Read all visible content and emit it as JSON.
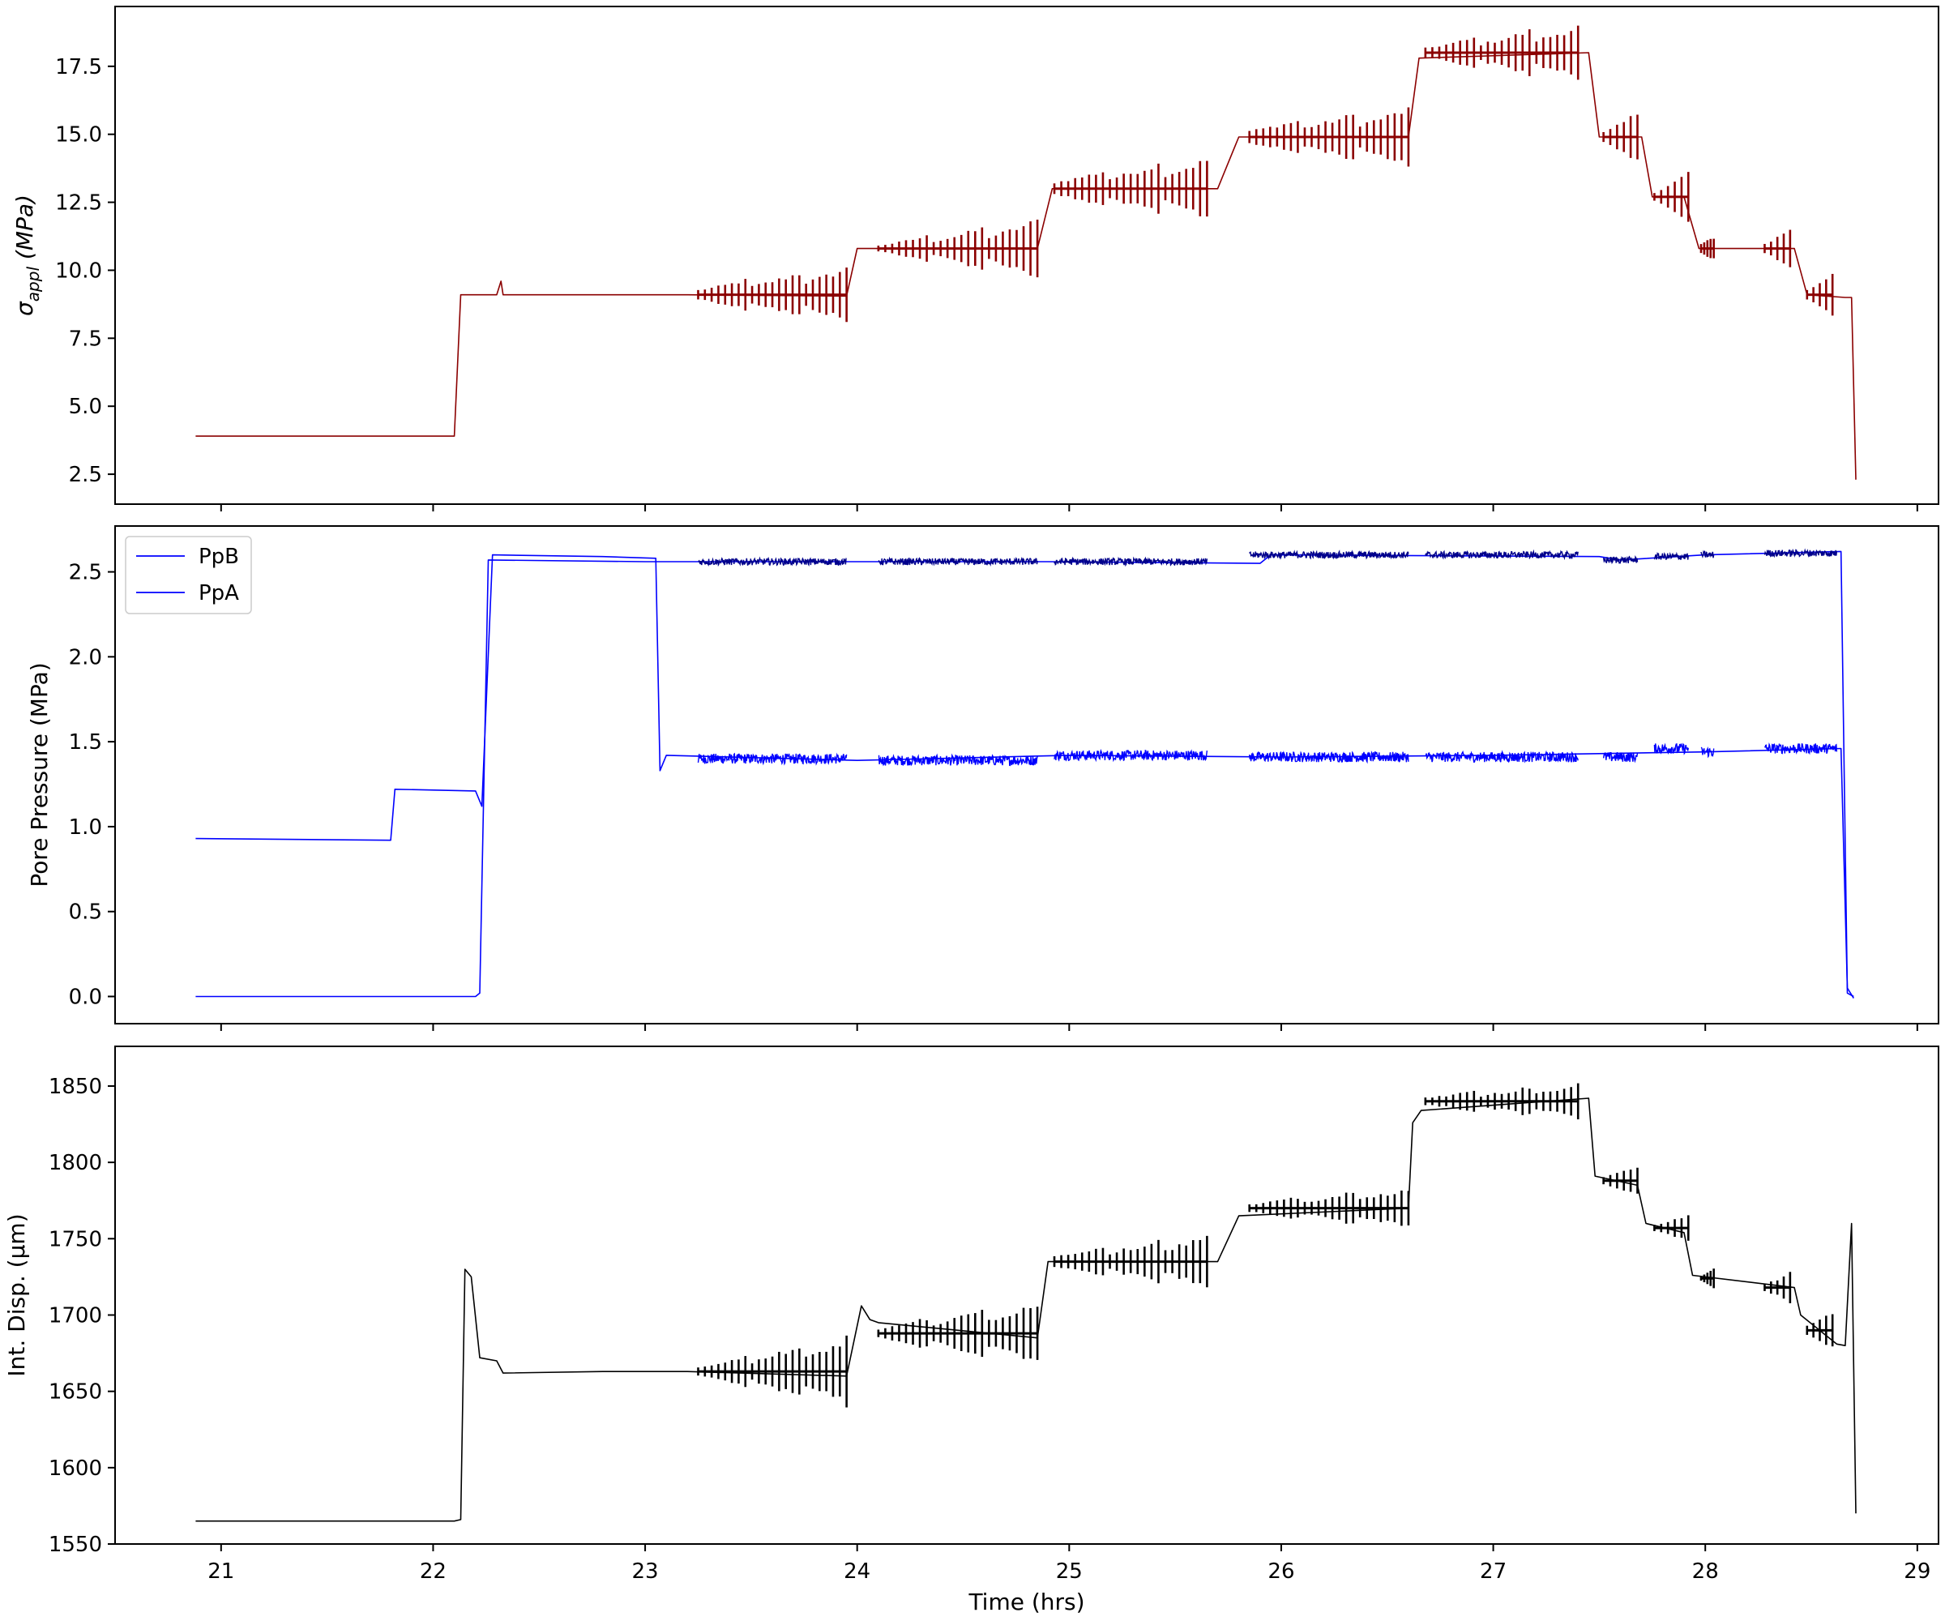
{
  "figure": {
    "xlabel": "Time (hrs)"
  },
  "chart_data": [
    {
      "type": "line",
      "ylabel": "σappl (MPa)",
      "ylabel_main": "σ",
      "ylabel_sub": "appl",
      "ylabel_unit": " (MPa)",
      "xlim": [
        20.5,
        29.1
      ],
      "ylim": [
        1.4,
        19.7
      ],
      "xticks": [
        21,
        22,
        23,
        24,
        25,
        26,
        27,
        28,
        29
      ],
      "yticks": [
        2.5,
        5.0,
        7.5,
        10.0,
        12.5,
        15.0,
        17.5
      ],
      "ytick_labels": [
        "2.5",
        "5.0",
        "7.5",
        "10.0",
        "12.5",
        "15.0",
        "17.5"
      ],
      "color": "#8b0000",
      "series": [
        {
          "x": [
            20.88,
            22.05,
            22.1,
            22.13,
            22.3,
            22.32,
            22.33,
            23.2,
            23.95,
            24.0,
            24.85,
            24.92,
            25.7,
            25.8,
            26.6,
            26.65,
            27.45,
            27.5,
            27.7,
            27.75,
            27.9,
            27.97,
            28.3,
            28.42,
            28.48,
            28.66,
            28.69,
            28.71
          ],
          "y": [
            3.9,
            3.9,
            3.9,
            9.1,
            9.1,
            9.6,
            9.1,
            9.1,
            9.05,
            10.8,
            10.8,
            13.0,
            13.0,
            14.9,
            14.9,
            17.8,
            18.0,
            14.9,
            14.9,
            12.7,
            12.7,
            10.8,
            10.8,
            10.8,
            9.1,
            9.0,
            9.0,
            2.3
          ]
        }
      ],
      "oscillation_bursts": [
        {
          "x_start": 23.25,
          "x_end": 23.95,
          "center": 9.1,
          "amp_start": 0.3,
          "amp_end": 1.0
        },
        {
          "x_start": 24.1,
          "x_end": 24.85,
          "center": 10.8,
          "amp_start": 0.2,
          "amp_end": 1.0
        },
        {
          "x_start": 24.93,
          "x_end": 25.65,
          "center": 13.0,
          "amp_start": 0.4,
          "amp_end": 1.1
        },
        {
          "x_start": 25.85,
          "x_end": 26.6,
          "center": 14.9,
          "amp_start": 0.4,
          "amp_end": 1.0
        },
        {
          "x_start": 26.68,
          "x_end": 27.4,
          "center": 18.0,
          "amp_start": 0.3,
          "amp_end": 1.0
        },
        {
          "x_start": 27.52,
          "x_end": 27.68,
          "center": 14.9,
          "amp_start": 0.3,
          "amp_end": 1.0
        },
        {
          "x_start": 27.76,
          "x_end": 27.92,
          "center": 12.7,
          "amp_start": 0.3,
          "amp_end": 1.0
        },
        {
          "x_start": 27.98,
          "x_end": 28.04,
          "center": 10.8,
          "amp_start": 0.3,
          "amp_end": 0.5
        },
        {
          "x_start": 28.28,
          "x_end": 28.4,
          "center": 10.8,
          "amp_start": 0.3,
          "amp_end": 0.9
        },
        {
          "x_start": 28.48,
          "x_end": 28.6,
          "center": 9.1,
          "amp_start": 0.3,
          "amp_end": 1.0
        }
      ]
    },
    {
      "type": "line",
      "ylabel": "Pore Pressure (MPa)",
      "xlim": [
        20.5,
        29.1
      ],
      "ylim": [
        -0.16,
        2.77
      ],
      "xticks": [
        21,
        22,
        23,
        24,
        25,
        26,
        27,
        28,
        29
      ],
      "yticks": [
        0.0,
        0.5,
        1.0,
        1.5,
        2.0,
        2.5
      ],
      "ytick_labels": [
        "0.0",
        "0.5",
        "1.0",
        "1.5",
        "2.0",
        "2.5"
      ],
      "legend": {
        "position": "upper left",
        "entries": [
          "PpB",
          "PpA"
        ]
      },
      "series": [
        {
          "name": "PpB",
          "color": "#0000ff",
          "x": [
            20.88,
            22.2,
            22.22,
            22.26,
            23.0,
            23.3,
            24.0,
            24.9,
            25.9,
            25.95,
            27.5,
            27.6,
            28.0,
            28.64,
            28.67,
            28.7
          ],
          "y": [
            0.0,
            0.0,
            0.02,
            2.57,
            2.56,
            2.56,
            2.56,
            2.56,
            2.55,
            2.6,
            2.59,
            2.57,
            2.6,
            2.62,
            0.02,
            0.0
          ]
        },
        {
          "name": "PpA",
          "color": "#0000ff",
          "x": [
            20.88,
            21.8,
            21.82,
            22.2,
            22.23,
            22.28,
            22.8,
            23.05,
            23.07,
            23.1,
            24.0,
            25.0,
            26.0,
            27.0,
            28.0,
            28.64,
            28.67,
            28.7
          ],
          "y": [
            0.93,
            0.92,
            1.22,
            1.21,
            1.12,
            2.6,
            2.59,
            2.58,
            1.33,
            1.42,
            1.39,
            1.42,
            1.41,
            1.42,
            1.44,
            1.46,
            0.05,
            -0.01
          ]
        }
      ],
      "noise_bands": [
        {
          "series": "PpA",
          "x_start": 23.25,
          "x_end": 23.95,
          "center": 1.4,
          "amp": 0.03
        },
        {
          "series": "PpA",
          "x_start": 24.1,
          "x_end": 24.85,
          "center": 1.39,
          "amp": 0.03
        },
        {
          "series": "PpA",
          "x_start": 24.93,
          "x_end": 25.65,
          "center": 1.42,
          "amp": 0.03
        },
        {
          "series": "PpA",
          "x_start": 25.85,
          "x_end": 26.6,
          "center": 1.41,
          "amp": 0.03
        },
        {
          "series": "PpA",
          "x_start": 26.68,
          "x_end": 27.4,
          "center": 1.41,
          "amp": 0.03
        },
        {
          "series": "PpA",
          "x_start": 27.52,
          "x_end": 27.68,
          "center": 1.41,
          "amp": 0.03
        },
        {
          "series": "PpA",
          "x_start": 27.76,
          "x_end": 27.92,
          "center": 1.46,
          "amp": 0.03
        },
        {
          "series": "PpA",
          "x_start": 27.98,
          "x_end": 28.04,
          "center": 1.44,
          "amp": 0.03
        },
        {
          "series": "PpA",
          "x_start": 28.28,
          "x_end": 28.62,
          "center": 1.46,
          "amp": 0.03
        },
        {
          "series": "PpB",
          "x_start": 23.25,
          "x_end": 23.95,
          "center": 2.56,
          "amp": 0.02
        },
        {
          "series": "PpB",
          "x_start": 24.1,
          "x_end": 24.85,
          "center": 2.56,
          "amp": 0.02
        },
        {
          "series": "PpB",
          "x_start": 24.93,
          "x_end": 25.65,
          "center": 2.56,
          "amp": 0.02
        },
        {
          "series": "PpB",
          "x_start": 25.85,
          "x_end": 26.6,
          "center": 2.6,
          "amp": 0.02
        },
        {
          "series": "PpB",
          "x_start": 26.68,
          "x_end": 27.4,
          "center": 2.6,
          "amp": 0.02
        },
        {
          "series": "PpB",
          "x_start": 27.52,
          "x_end": 27.68,
          "center": 2.57,
          "amp": 0.02
        },
        {
          "series": "PpB",
          "x_start": 27.76,
          "x_end": 27.92,
          "center": 2.59,
          "amp": 0.02
        },
        {
          "series": "PpB",
          "x_start": 27.98,
          "x_end": 28.04,
          "center": 2.6,
          "amp": 0.02
        },
        {
          "series": "PpB",
          "x_start": 28.28,
          "x_end": 28.62,
          "center": 2.61,
          "amp": 0.02
        }
      ],
      "band_color": "#00008b"
    },
    {
      "type": "line",
      "ylabel": "Int. Disp. (μm)",
      "xlim": [
        20.5,
        29.1
      ],
      "ylim": [
        1550,
        1876
      ],
      "xticks": [
        21,
        22,
        23,
        24,
        25,
        26,
        27,
        28,
        29
      ],
      "xtick_labels": [
        "21",
        "22",
        "23",
        "24",
        "25",
        "26",
        "27",
        "28",
        "29"
      ],
      "yticks": [
        1550,
        1600,
        1650,
        1700,
        1750,
        1800,
        1850
      ],
      "ytick_labels": [
        "1550",
        "1600",
        "1650",
        "1700",
        "1750",
        "1800",
        "1850"
      ],
      "color": "#000000",
      "series": [
        {
          "x": [
            20.88,
            22.1,
            22.13,
            22.15,
            22.18,
            22.22,
            22.3,
            22.33,
            22.8,
            23.2,
            23.95,
            24.02,
            24.06,
            24.1,
            24.85,
            24.9,
            24.95,
            25.7,
            25.8,
            26.6,
            26.62,
            26.66,
            27.45,
            27.48,
            27.68,
            27.72,
            27.9,
            27.94,
            28.3,
            28.42,
            28.45,
            28.62,
            28.66,
            28.69,
            28.71
          ],
          "y": [
            1565,
            1565,
            1566,
            1730,
            1725,
            1672,
            1670,
            1662,
            1663,
            1663,
            1660,
            1706,
            1697,
            1695,
            1685,
            1735,
            1735,
            1735,
            1765,
            1770,
            1826,
            1834,
            1842,
            1791,
            1785,
            1760,
            1754,
            1726,
            1720,
            1718,
            1700,
            1681,
            1680,
            1760,
            1570
          ]
        }
      ],
      "oscillation_bursts": [
        {
          "x_start": 23.25,
          "x_end": 23.95,
          "center": 1663,
          "amp_start": 5,
          "amp_end": 22
        },
        {
          "x_start": 24.1,
          "x_end": 24.85,
          "center": 1688,
          "amp_start": 5,
          "amp_end": 20
        },
        {
          "x_start": 24.93,
          "x_end": 25.65,
          "center": 1735,
          "amp_start": 6,
          "amp_end": 17
        },
        {
          "x_start": 25.85,
          "x_end": 26.6,
          "center": 1770,
          "amp_start": 4,
          "amp_end": 13
        },
        {
          "x_start": 26.68,
          "x_end": 27.4,
          "center": 1840,
          "amp_start": 4,
          "amp_end": 11
        },
        {
          "x_start": 27.52,
          "x_end": 27.68,
          "center": 1788,
          "amp_start": 4,
          "amp_end": 11
        },
        {
          "x_start": 27.76,
          "x_end": 27.92,
          "center": 1757,
          "amp_start": 4,
          "amp_end": 10
        },
        {
          "x_start": 27.98,
          "x_end": 28.04,
          "center": 1724,
          "amp_start": 3,
          "amp_end": 7
        },
        {
          "x_start": 28.28,
          "x_end": 28.4,
          "center": 1718,
          "amp_start": 4,
          "amp_end": 12
        },
        {
          "x_start": 28.48,
          "x_end": 28.6,
          "center": 1690,
          "amp_start": 5,
          "amp_end": 15
        }
      ]
    }
  ]
}
